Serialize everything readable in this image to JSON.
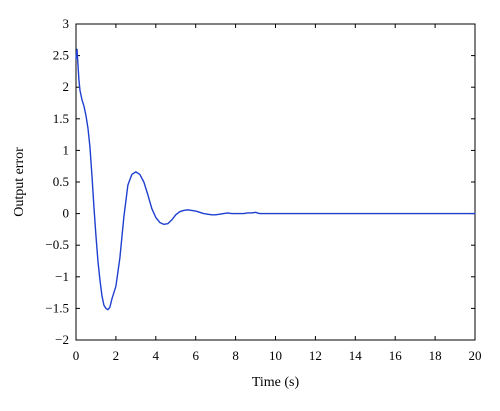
{
  "chart_data": {
    "type": "line",
    "title": "",
    "xlabel": "Time (s)",
    "ylabel": "Output error",
    "xlim": [
      0,
      20
    ],
    "ylim": [
      -2,
      3
    ],
    "xticks": [
      0,
      2,
      4,
      6,
      8,
      10,
      12,
      14,
      16,
      18,
      20
    ],
    "yticks": [
      -2,
      -1.5,
      -1,
      -0.5,
      0,
      0.5,
      1,
      1.5,
      2,
      2.5,
      3
    ],
    "xtick_labels": [
      "0",
      "2",
      "4",
      "6",
      "8",
      "10",
      "12",
      "14",
      "16",
      "18",
      "20"
    ],
    "ytick_labels": [
      "−2",
      "−1.5",
      "−1",
      "−0.5",
      "0",
      "0.5",
      "1",
      "1.5",
      "2",
      "2.5",
      "3"
    ],
    "grid": false,
    "line_color": "#1f3fcf",
    "series": [
      {
        "x": [
          0,
          0.05,
          0.1,
          0.15,
          0.2,
          0.3,
          0.4,
          0.5,
          0.6,
          0.7,
          0.8,
          0.9,
          1.0,
          1.1,
          1.2,
          1.3,
          1.4,
          1.5,
          1.6,
          1.7,
          1.8,
          1.9,
          2.0,
          2.2,
          2.4,
          2.6,
          2.8,
          3.0,
          3.2,
          3.4,
          3.6,
          3.8,
          4.0,
          4.2,
          4.4,
          4.6,
          4.8,
          5.0,
          5.2,
          5.4,
          5.6,
          5.8,
          6.0,
          6.2,
          6.4,
          6.6,
          6.8,
          7.0,
          7.2,
          7.4,
          7.6,
          7.8,
          8.0,
          8.2,
          8.4,
          8.6,
          8.8,
          9.0,
          9.2,
          9.4,
          9.6,
          10,
          12,
          14,
          16,
          18,
          20
        ],
        "y": [
          2.45,
          2.6,
          2.35,
          2.1,
          1.95,
          1.8,
          1.7,
          1.55,
          1.35,
          1.05,
          0.6,
          0.1,
          -0.35,
          -0.75,
          -1.05,
          -1.3,
          -1.45,
          -1.5,
          -1.52,
          -1.48,
          -1.35,
          -1.25,
          -1.15,
          -0.7,
          -0.05,
          0.45,
          0.62,
          0.66,
          0.62,
          0.5,
          0.3,
          0.08,
          -0.06,
          -0.14,
          -0.17,
          -0.16,
          -0.1,
          -0.02,
          0.03,
          0.05,
          0.06,
          0.05,
          0.04,
          0.02,
          0.0,
          -0.01,
          -0.02,
          -0.02,
          -0.01,
          0.0,
          0.01,
          0.0,
          0.0,
          0.0,
          0.0,
          0.01,
          0.01,
          0.02,
          0.0,
          0.0,
          0.0,
          0.0,
          0.0,
          0.0,
          0.0,
          0.0,
          0.0
        ]
      }
    ]
  }
}
